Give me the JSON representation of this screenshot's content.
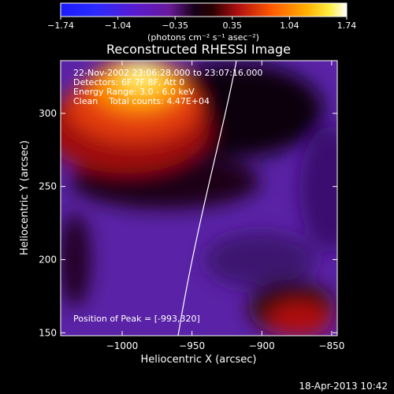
{
  "colorbar": {
    "ticks": [
      "-1.74",
      "-1.04",
      "-0.35",
      "0.35",
      "1.04",
      "1.74"
    ],
    "units": "(photons cm⁻² s⁻¹ asec⁻²)"
  },
  "chart_data": {
    "type": "heatmap",
    "title": "Reconstructed RHESSI Image",
    "xlabel": "Heliocentric X (arcsec)",
    "ylabel": "Heliocentric Y (arcsec)",
    "xlim": [
      -1044,
      -846
    ],
    "ylim": [
      148,
      336
    ],
    "x_ticks": [
      -1000,
      -950,
      -900,
      -850
    ],
    "y_ticks": [
      150,
      200,
      250,
      300
    ],
    "x_tick_labels": [
      "−1000",
      "−950",
      "−900",
      "−850"
    ],
    "y_tick_labels": [
      "150",
      "200",
      "250",
      "300"
    ],
    "colormap": "rainbow-black-to-white",
    "clim": [
      -1.74,
      1.74
    ],
    "peak": [
      -993,
      320
    ],
    "annotations": [
      "22-Nov-2002 23:06:28.000 to 23:07:16.000",
      "Detectors: 6F 7F 8F, Att 0",
      "Energy Range: 3.0 - 6.0 keV",
      "Clean    Total counts: 4.47E+04"
    ],
    "peak_label": "Position of Peak = [-993,320]"
  },
  "footer": {
    "date": "18-Apr-2013 10:42"
  }
}
